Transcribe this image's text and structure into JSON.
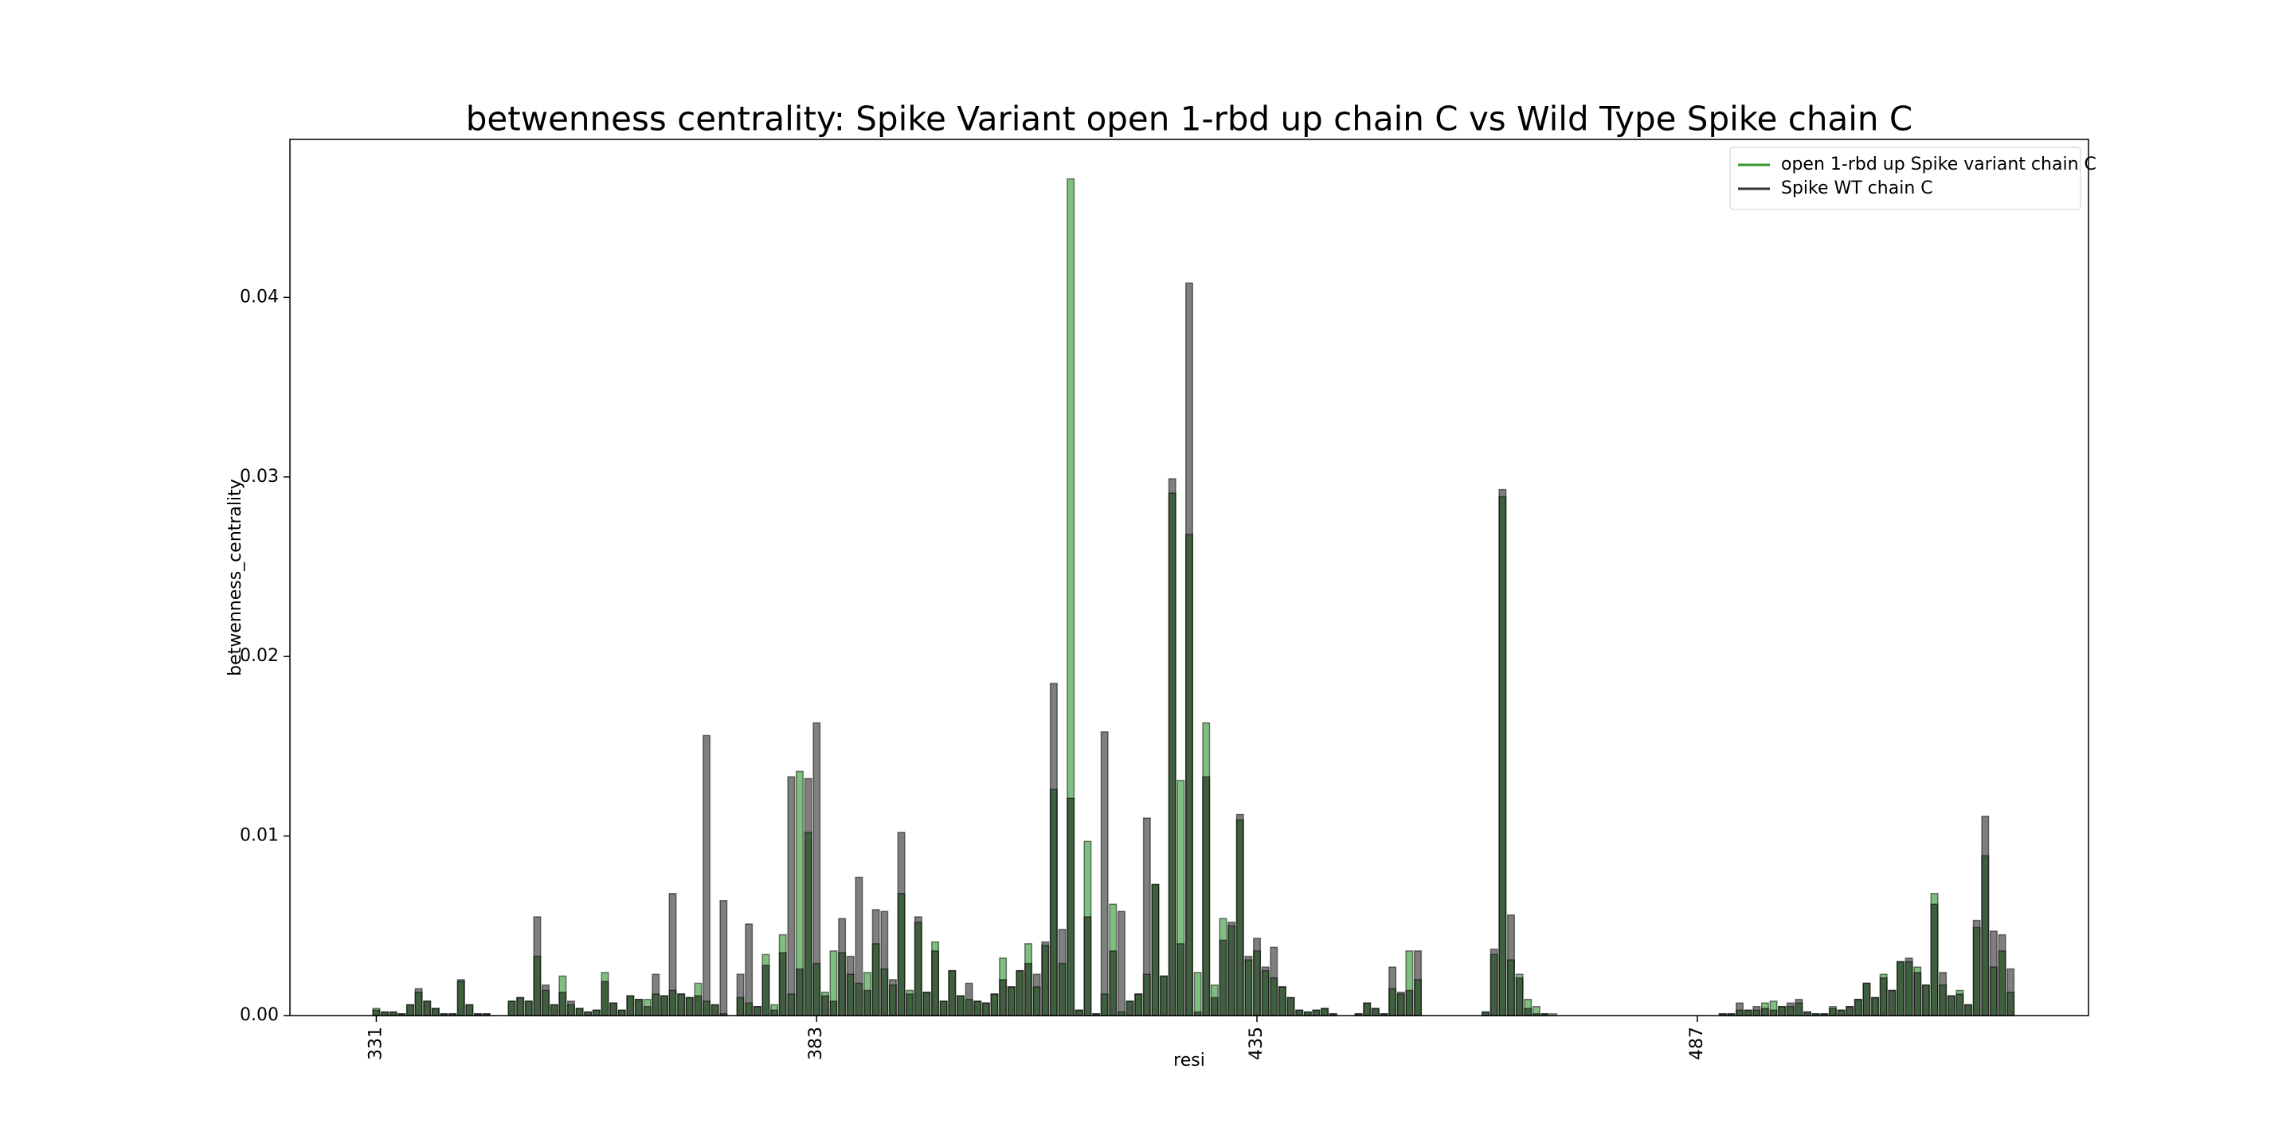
{
  "chart_data": {
    "type": "bar",
    "title": "betwenness centrality: Spike Variant open 1-rbd up chain C vs Wild Type Spike chain C",
    "xlabel": "resi",
    "ylabel": "betwenness_centrality",
    "legend": "upper right",
    "alpha": 0.5,
    "xlim": [
      320.8,
      533.2
    ],
    "xticks": [
      331,
      383,
      435,
      487
    ],
    "ylim": [
      0,
      0.0488
    ],
    "yticks": [
      {
        "value": 0,
        "label": "0.00"
      },
      {
        "value": 0.01,
        "label": "0.01"
      },
      {
        "value": 0.02,
        "label": "0.02"
      },
      {
        "value": 0.03,
        "label": "0.03"
      },
      {
        "value": 0.04,
        "label": "0.04"
      }
    ],
    "x": [
      331,
      332,
      333,
      334,
      335,
      336,
      337,
      338,
      339,
      340,
      341,
      342,
      343,
      344,
      345,
      346,
      347,
      348,
      349,
      350,
      351,
      352,
      353,
      354,
      355,
      356,
      357,
      358,
      359,
      360,
      361,
      362,
      363,
      364,
      365,
      366,
      367,
      368,
      369,
      370,
      371,
      372,
      373,
      374,
      375,
      376,
      377,
      378,
      379,
      380,
      381,
      382,
      383,
      384,
      385,
      386,
      387,
      388,
      389,
      390,
      391,
      392,
      393,
      394,
      395,
      396,
      397,
      398,
      399,
      400,
      401,
      402,
      403,
      404,
      405,
      406,
      407,
      408,
      409,
      410,
      411,
      412,
      413,
      414,
      415,
      416,
      417,
      418,
      419,
      420,
      421,
      422,
      423,
      424,
      425,
      426,
      427,
      428,
      429,
      430,
      431,
      432,
      433,
      434,
      435,
      436,
      437,
      438,
      439,
      440,
      441,
      442,
      443,
      444,
      445,
      446,
      447,
      448,
      449,
      450,
      451,
      452,
      453,
      454,
      455,
      456,
      457,
      458,
      459,
      460,
      461,
      462,
      463,
      464,
      465,
      466,
      467,
      468,
      469,
      470,
      471,
      472,
      473,
      474,
      475,
      476,
      477,
      478,
      479,
      480,
      481,
      482,
      483,
      484,
      485,
      486,
      487,
      488,
      489,
      490,
      491,
      492,
      493,
      494,
      495,
      496,
      497,
      498,
      499,
      500,
      501,
      502,
      503,
      504,
      505,
      506,
      507,
      508,
      509,
      510,
      511,
      512,
      513,
      514,
      515,
      516,
      517,
      518,
      519,
      520,
      521,
      522,
      523,
      524
    ],
    "series": [
      {
        "name": "open 1-rbd up Spike variant chain C",
        "color": "#008000",
        "values": [
          0.0004,
          0.0002,
          0.0002,
          0.0001,
          0.0006,
          0.0013,
          0.0008,
          0.0004,
          0.0001,
          0.0001,
          0.0019,
          0.0006,
          0.0001,
          0.0001,
          0,
          0,
          0.0008,
          0.001,
          0.0008,
          0.0033,
          0.0014,
          0.0006,
          0.0022,
          0.0006,
          0.0004,
          0.0002,
          0.0003,
          0.0024,
          0.0007,
          0.0003,
          0.0011,
          0.0009,
          0.0009,
          0.0012,
          0.0011,
          0.0014,
          0.0012,
          0.001,
          0.0018,
          0.0008,
          0.0006,
          0.0001,
          0,
          0.001,
          0.0007,
          0.0005,
          0.0034,
          0.0006,
          0.0045,
          0.0012,
          0.0136,
          0.0102,
          0.0029,
          0.0013,
          0.0036,
          0.0035,
          0.0023,
          0.0018,
          0.0024,
          0.004,
          0.0026,
          0.0017,
          0.0068,
          0.0014,
          0.0052,
          0.0013,
          0.0041,
          0.0008,
          0.0025,
          0.0011,
          0.0009,
          0.0008,
          0.0007,
          0.0012,
          0.0032,
          0.0016,
          0.0025,
          0.004,
          0.0016,
          0.0039,
          0.0126,
          0.0029,
          0.0466,
          0.0003,
          0.0097,
          0.0001,
          0.0012,
          0.0062,
          0.0002,
          0.0008,
          0.0012,
          0.0023,
          0.0073,
          0.0022,
          0.0291,
          0.0131,
          0.0268,
          0.0024,
          0.0163,
          0.0017,
          0.0054,
          0.005,
          0.0109,
          0.0031,
          0.0036,
          0.0025,
          0.0021,
          0.0016,
          0.001,
          0.0003,
          0.0002,
          0.0003,
          0.0004,
          0.0001,
          0,
          0,
          0.0001,
          0.0007,
          0.0004,
          0.0001,
          0.0015,
          0.0012,
          0.0036,
          0.002,
          0,
          0,
          0,
          0,
          0,
          0,
          0,
          0.0002,
          0.0034,
          0.0289,
          0.0031,
          0.0023,
          0.0009,
          0.0005,
          0.0001,
          0.0001,
          0,
          0,
          0,
          0,
          0,
          0,
          0,
          0,
          0,
          0,
          0,
          0,
          0,
          0,
          0,
          0,
          0,
          0,
          0,
          0.0001,
          0.0001,
          0.0003,
          0.0003,
          0.0003,
          0.0007,
          0.0008,
          0.0005,
          0.0005,
          0.0007,
          0.0002,
          0.0001,
          0.0001,
          0.0005,
          0.0003,
          0.0005,
          0.0009,
          0.0018,
          0.001,
          0.0023,
          0.0014,
          0.003,
          0.003,
          0.0027,
          0.0017,
          0.0068,
          0.0017,
          0.0011,
          0.0014,
          0.0006,
          0.0049,
          0.0089,
          0.0027,
          0.0036,
          0.0013
        ]
      },
      {
        "name": "Spike WT chain C",
        "color": "#000000",
        "values": [
          0.0003,
          0.0002,
          0.0002,
          0.0001,
          0.0006,
          0.0015,
          0.0008,
          0.0004,
          0.0001,
          0.0001,
          0.002,
          0.0006,
          0.0001,
          0.0001,
          0,
          0,
          0.0008,
          0.001,
          0.0008,
          0.0055,
          0.0017,
          0.0006,
          0.0013,
          0.0008,
          0.0004,
          0.0002,
          0.0003,
          0.0019,
          0.0007,
          0.0003,
          0.0011,
          0.0009,
          0.0005,
          0.0023,
          0.0011,
          0.0068,
          0.0012,
          0.001,
          0.0011,
          0.0156,
          0.0006,
          0.0064,
          0,
          0.0023,
          0.0051,
          0.0005,
          0.0028,
          0.0003,
          0.0035,
          0.0133,
          0.0026,
          0.0132,
          0.0163,
          0.0011,
          0.0008,
          0.0054,
          0.0033,
          0.0077,
          0.0014,
          0.0059,
          0.0058,
          0.002,
          0.0102,
          0.0012,
          0.0055,
          0.0013,
          0.0036,
          0.0008,
          0.0025,
          0.0011,
          0.0018,
          0.0008,
          0.0007,
          0.0012,
          0.002,
          0.0016,
          0.0025,
          0.0029,
          0.0023,
          0.0041,
          0.0185,
          0.0048,
          0.0121,
          0.0003,
          0.0055,
          0.0001,
          0.0158,
          0.0036,
          0.0058,
          0.0008,
          0.0012,
          0.011,
          0.0073,
          0.0022,
          0.0299,
          0.004,
          0.0408,
          0.0002,
          0.0133,
          0.001,
          0.0042,
          0.0052,
          0.0112,
          0.0033,
          0.0043,
          0.0027,
          0.0038,
          0.0016,
          0.001,
          0.0003,
          0.0002,
          0.0003,
          0.0004,
          0.0001,
          0,
          0,
          0.0001,
          0.0007,
          0.0004,
          0.0001,
          0.0027,
          0.0013,
          0.0014,
          0.0036,
          0,
          0,
          0,
          0,
          0,
          0,
          0,
          0.0002,
          0.0037,
          0.0293,
          0.0056,
          0.0021,
          0.0004,
          0.0001,
          0.0001,
          0,
          0,
          0,
          0,
          0,
          0,
          0,
          0,
          0,
          0,
          0,
          0,
          0,
          0,
          0,
          0,
          0,
          0,
          0,
          0,
          0.0001,
          0.0001,
          0.0007,
          0.0003,
          0.0005,
          0.0004,
          0.0003,
          0.0005,
          0.0007,
          0.0009,
          0.0002,
          0.0001,
          0.0001,
          0.0004,
          0.0003,
          0.0005,
          0.0009,
          0.0018,
          0.001,
          0.0021,
          0.0014,
          0.003,
          0.0032,
          0.0024,
          0.0017,
          0.0062,
          0.0024,
          0.0011,
          0.0012,
          0.0006,
          0.0053,
          0.0111,
          0.0047,
          0.0045,
          0.0026
        ]
      }
    ]
  }
}
